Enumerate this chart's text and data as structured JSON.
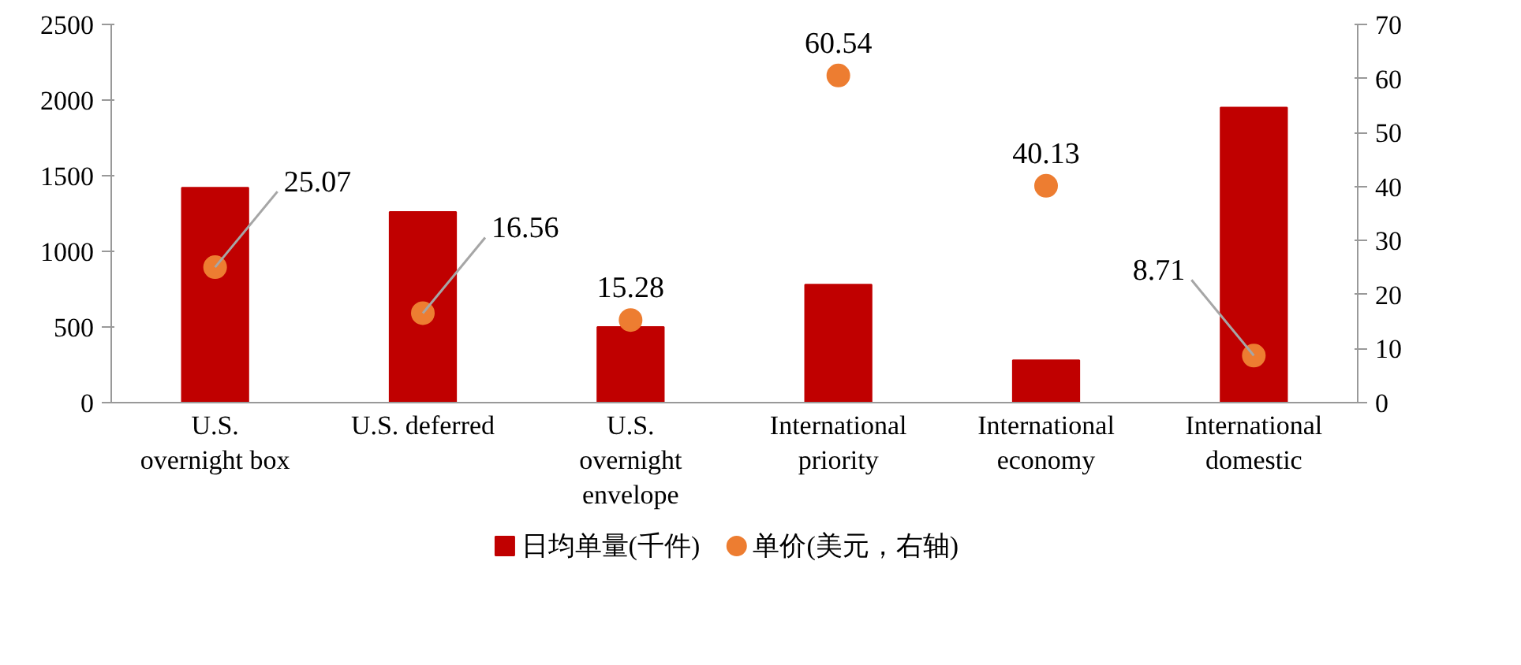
{
  "chart_data": {
    "type": "bar",
    "categories": [
      "U.S.\novernight box",
      "U.S. deferred",
      "U.S.\novernight\nenvelope",
      "International\npriority",
      "International\neconomy",
      "International\ndomestic"
    ],
    "series": [
      {
        "name": "日均单量(千件)",
        "color": "#c00000",
        "values": [
          1420,
          1260,
          500,
          780,
          280,
          1950
        ]
      },
      {
        "name": "单价(美元，右轴)",
        "type": "scatter",
        "axis": "y2",
        "color": "#ed7d31",
        "values": [
          25.07,
          16.56,
          15.28,
          60.54,
          40.13,
          8.71
        ],
        "value_labels": [
          "25.07",
          "16.56",
          "15.28",
          "60.54",
          "40.13",
          "8.71"
        ]
      }
    ],
    "ylim": [
      0,
      2500
    ],
    "yticks": [
      0,
      500,
      1000,
      1500,
      2000,
      2500
    ],
    "y2lim": [
      0,
      70
    ],
    "y2ticks": [
      0,
      10,
      20,
      30,
      40,
      50,
      60,
      70
    ],
    "legend": "bottom",
    "grid": false,
    "marker": "circle"
  }
}
